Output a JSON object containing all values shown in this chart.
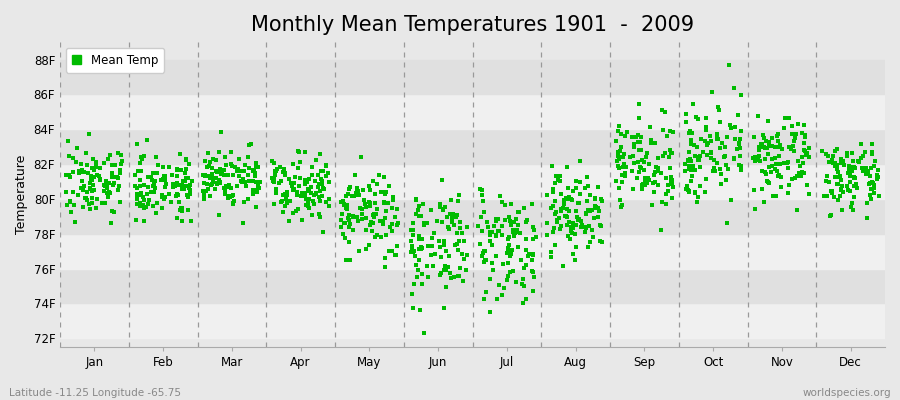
{
  "title": "Monthly Mean Temperatures 1901  -  2009",
  "ylabel": "Temperature",
  "xlabel_labels": [
    "Jan",
    "Feb",
    "Mar",
    "Apr",
    "May",
    "Jun",
    "Jul",
    "Aug",
    "Sep",
    "Oct",
    "Nov",
    "Dec"
  ],
  "ytick_labels": [
    "72F",
    "74F",
    "76F",
    "78F",
    "80F",
    "82F",
    "84F",
    "86F",
    "88F"
  ],
  "ytick_values": [
    72,
    74,
    76,
    78,
    80,
    82,
    84,
    86,
    88
  ],
  "ylim": [
    71.5,
    89.0
  ],
  "xlim": [
    -0.5,
    11.5
  ],
  "dot_color": "#00bb00",
  "bg_color": "#e8e8e8",
  "band_light": "#f0f0f0",
  "band_dark": "#e0e0e0",
  "legend_label": "Mean Temp",
  "bottom_left": "Latitude -11.25 Longitude -65.75",
  "bottom_right": "worldspecies.org",
  "title_fontsize": 15,
  "axis_label_fontsize": 9,
  "tick_fontsize": 8.5,
  "n_years": 109,
  "monthly_means": [
    81.0,
    80.8,
    81.2,
    80.8,
    79.0,
    77.5,
    77.5,
    79.2,
    82.0,
    82.8,
    82.2,
    81.2
  ],
  "monthly_stds": [
    1.0,
    0.9,
    0.9,
    0.9,
    1.3,
    1.6,
    1.6,
    1.3,
    1.2,
    1.4,
    1.1,
    0.9
  ],
  "random_seed": 7
}
